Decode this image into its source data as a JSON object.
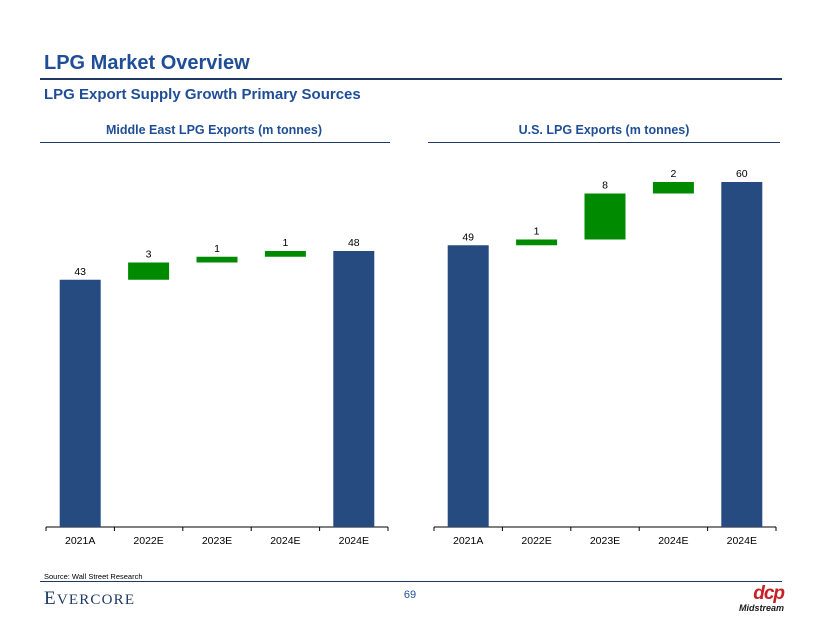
{
  "header": {
    "title": "LPG Market Overview",
    "subtitle": "LPG Export Supply Growth Primary Sources"
  },
  "chart_data": [
    {
      "type": "waterfall",
      "title": "Middle East LPG Exports (m tonnes)",
      "categories": [
        "2021A",
        "2022E",
        "2023E",
        "2024E",
        "2024E"
      ],
      "values": [
        43,
        3,
        1,
        1,
        48
      ],
      "kinds": [
        "total",
        "delta",
        "delta",
        "delta",
        "total"
      ],
      "ylim": [
        0,
        60
      ],
      "colors": {
        "total": "#264b80",
        "delta": "#008a00"
      }
    },
    {
      "type": "waterfall",
      "title": "U.S. LPG Exports (m tonnes)",
      "categories": [
        "2021A",
        "2022E",
        "2023E",
        "2024E",
        "2024E"
      ],
      "values": [
        49,
        1,
        8,
        2,
        60
      ],
      "kinds": [
        "total",
        "delta",
        "delta",
        "delta",
        "total"
      ],
      "ylim": [
        0,
        60
      ],
      "colors": {
        "total": "#264b80",
        "delta": "#008a00"
      }
    }
  ],
  "footer": {
    "source": "Source: Wall Street Research",
    "company_first": "E",
    "company_rest": "VERCORE",
    "page_number": "69",
    "logo_mark": "dcp",
    "logo_text": "Midstream"
  }
}
